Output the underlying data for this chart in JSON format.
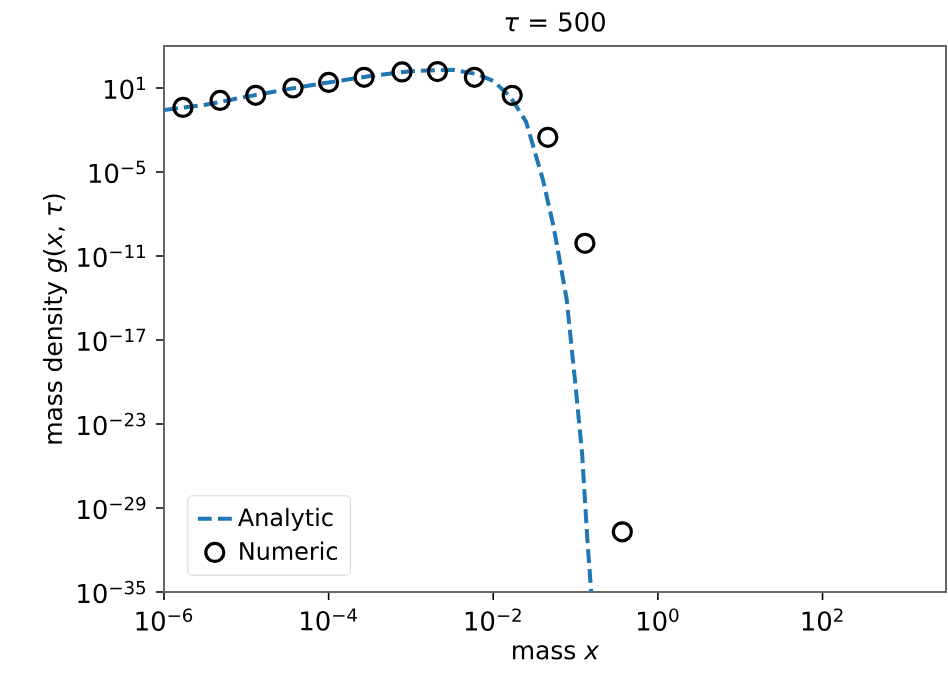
{
  "chart_data": {
    "type": "line",
    "title": "*τ* = 500",
    "xlabel": "mass *x*",
    "ylabel": "mass density *g*(*x*, *τ*)",
    "log": "xy",
    "xlim": [
      1e-06,
      3162
    ],
    "ylim": [
      1e-35,
      10000
    ],
    "xticks": [
      {
        "value": 1e-06,
        "label": "10$^{−6}$"
      },
      {
        "value": 0.0001,
        "label": "10$^{−4}$"
      },
      {
        "value": 0.01,
        "label": "10$^{−2}$"
      },
      {
        "value": 1,
        "label": "10$^{0}$"
      },
      {
        "value": 100,
        "label": "10$^{2}$"
      }
    ],
    "yticks": [
      {
        "value": 10,
        "label": "10$^{1}$"
      },
      {
        "value": 1e-05,
        "label": "10$^{−5}$"
      },
      {
        "value": 1e-11,
        "label": "10$^{−11}$"
      },
      {
        "value": 1e-17,
        "label": "10$^{−17}$"
      },
      {
        "value": 1e-23,
        "label": "10$^{−23}$"
      },
      {
        "value": 1e-29,
        "label": "10$^{−29}$"
      },
      {
        "value": 1e-35,
        "label": "10$^{−35}$"
      }
    ],
    "legend": "bottom left",
    "series": [
      {
        "name": "Analytic",
        "line_style": "dashed",
        "marker": "none",
        "color": "#1f77b4",
        "x": [
          1e-06,
          3.2e-06,
          1e-05,
          3.2e-05,
          0.0001,
          0.00032,
          0.001,
          0.0032,
          0.0063,
          0.01,
          0.016,
          0.025,
          0.04,
          0.054,
          0.078,
          0.1,
          0.12,
          0.14,
          0.155
        ],
        "values": [
          0.27,
          0.63,
          2.4,
          8.3,
          25,
          71,
          160,
          200,
          100,
          32,
          2.5,
          0.04,
          3e-06,
          1.3e-09,
          8e-15,
          5e-21,
          8e-26,
          3e-32,
          1e-35
        ]
      },
      {
        "name": "Numeric",
        "type": "scatter",
        "marker": "circle",
        "color": "#000000",
        "x": [
          1.7e-06,
          4.8e-06,
          1.3e-05,
          3.7e-05,
          0.0001,
          0.00027,
          0.00078,
          0.0021,
          0.0059,
          0.017,
          0.046,
          0.13,
          0.37
        ],
        "values": [
          0.41,
          1.3,
          3.0,
          10,
          25,
          58,
          140,
          150,
          58,
          3.0,
          0.003,
          8e-11,
          2e-31
        ]
      }
    ]
  }
}
